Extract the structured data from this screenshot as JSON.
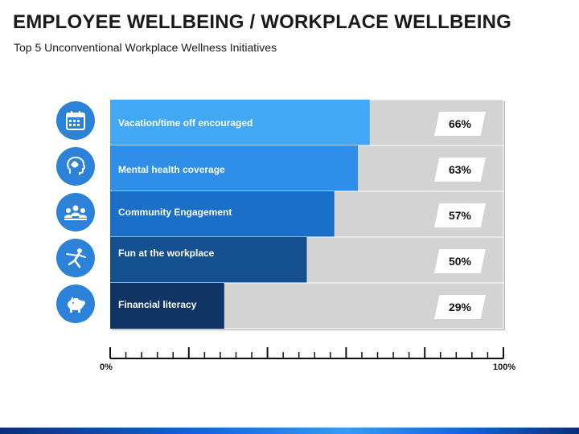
{
  "title": "EMPLOYEE WELLBEING / WORKPLACE WELLBEING",
  "subtitle": "Top 5 Unconventional Workplace Wellness Initiatives",
  "chart_data": {
    "type": "bar",
    "orientation": "horizontal",
    "categories": [
      "Vacation/time off encouraged",
      "Mental health coverage",
      "Community Engagement",
      "Fun at the workplace",
      "Financial literacy"
    ],
    "values": [
      66,
      63,
      57,
      50,
      29
    ],
    "value_labels": [
      "66%",
      "63%",
      "57%",
      "50%",
      "29%"
    ],
    "xlim": [
      0,
      100
    ],
    "x_tick_labels": [
      "0%",
      "100%"
    ],
    "bar_colors": [
      "#42a8f5",
      "#2f8ee8",
      "#1a6fc9",
      "#14508f",
      "#0e3563"
    ],
    "track_color": "#d3d3d3",
    "icons": [
      "calendar-icon",
      "head-icon",
      "people-icon",
      "dancer-icon",
      "piggy-bank-icon"
    ]
  },
  "colors": {
    "icon_bg": "#2b82d8",
    "footer": "#1466d6"
  }
}
